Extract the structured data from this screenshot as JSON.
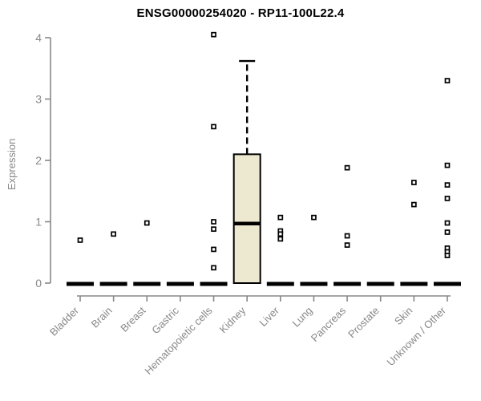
{
  "page": {
    "background": "#ffffff"
  },
  "chart_data": {
    "type": "boxplot",
    "title": "ENSG00000254020 - RP11-100L22.4",
    "ylabel": "Expression",
    "ylim": [
      0,
      4
    ],
    "yticks": [
      "0",
      "1",
      "2",
      "3",
      "4"
    ],
    "grid": false,
    "legend": "none",
    "axis_color": "#888888",
    "label_color": "#888888",
    "title_color": "#000000",
    "box_fill": "#EDE8D0",
    "box_border": "#000000",
    "marker": "open-square",
    "categories": [
      "Bladder",
      "Brain",
      "Breast",
      "Gastric",
      "Hematopoietic cells",
      "Kidney",
      "Liver",
      "Lung",
      "Pancreas",
      "Prostate",
      "Skin",
      "Unknown / Other"
    ],
    "series": [
      {
        "category": "Bladder",
        "box": {
          "median": 0,
          "q1": 0,
          "q3": 0,
          "collapsed": true
        },
        "points": [
          0.7
        ]
      },
      {
        "category": "Brain",
        "box": {
          "median": 0,
          "q1": 0,
          "q3": 0,
          "collapsed": true
        },
        "points": [
          0.8
        ]
      },
      {
        "category": "Breast",
        "box": {
          "median": 0,
          "q1": 0,
          "q3": 0,
          "collapsed": true
        },
        "points": [
          0.98
        ]
      },
      {
        "category": "Gastric",
        "box": {
          "median": 0,
          "q1": 0,
          "q3": 0,
          "collapsed": true
        },
        "points": []
      },
      {
        "category": "Hematopoietic cells",
        "box": {
          "median": 0,
          "q1": 0,
          "q3": 0,
          "collapsed": true
        },
        "points": [
          4.05,
          2.55,
          1.0,
          0.88,
          0.55,
          0.25
        ]
      },
      {
        "category": "Kidney",
        "box": {
          "median": 0.97,
          "q1": 0,
          "q3": 2.1,
          "whisker_low": 0,
          "whisker_high": 3.62,
          "collapsed": false
        },
        "points": []
      },
      {
        "category": "Liver",
        "box": {
          "median": 0,
          "q1": 0,
          "q3": 0,
          "collapsed": true
        },
        "points": [
          1.07,
          0.85,
          0.8,
          0.72
        ]
      },
      {
        "category": "Lung",
        "box": {
          "median": 0,
          "q1": 0,
          "q3": 0,
          "collapsed": true
        },
        "points": [
          1.07
        ]
      },
      {
        "category": "Pancreas",
        "box": {
          "median": 0,
          "q1": 0,
          "q3": 0,
          "collapsed": true
        },
        "points": [
          1.88,
          0.77,
          0.62
        ]
      },
      {
        "category": "Prostate",
        "box": {
          "median": 0,
          "q1": 0,
          "q3": 0,
          "collapsed": true
        },
        "points": []
      },
      {
        "category": "Skin",
        "box": {
          "median": 0,
          "q1": 0,
          "q3": 0,
          "collapsed": true
        },
        "points": [
          1.64,
          1.28
        ]
      },
      {
        "category": "Unknown / Other",
        "box": {
          "median": 0,
          "q1": 0,
          "q3": 0,
          "collapsed": true
        },
        "points": [
          3.3,
          1.92,
          1.6,
          1.38,
          0.98,
          0.83,
          0.57,
          0.51,
          0.45
        ]
      }
    ]
  }
}
